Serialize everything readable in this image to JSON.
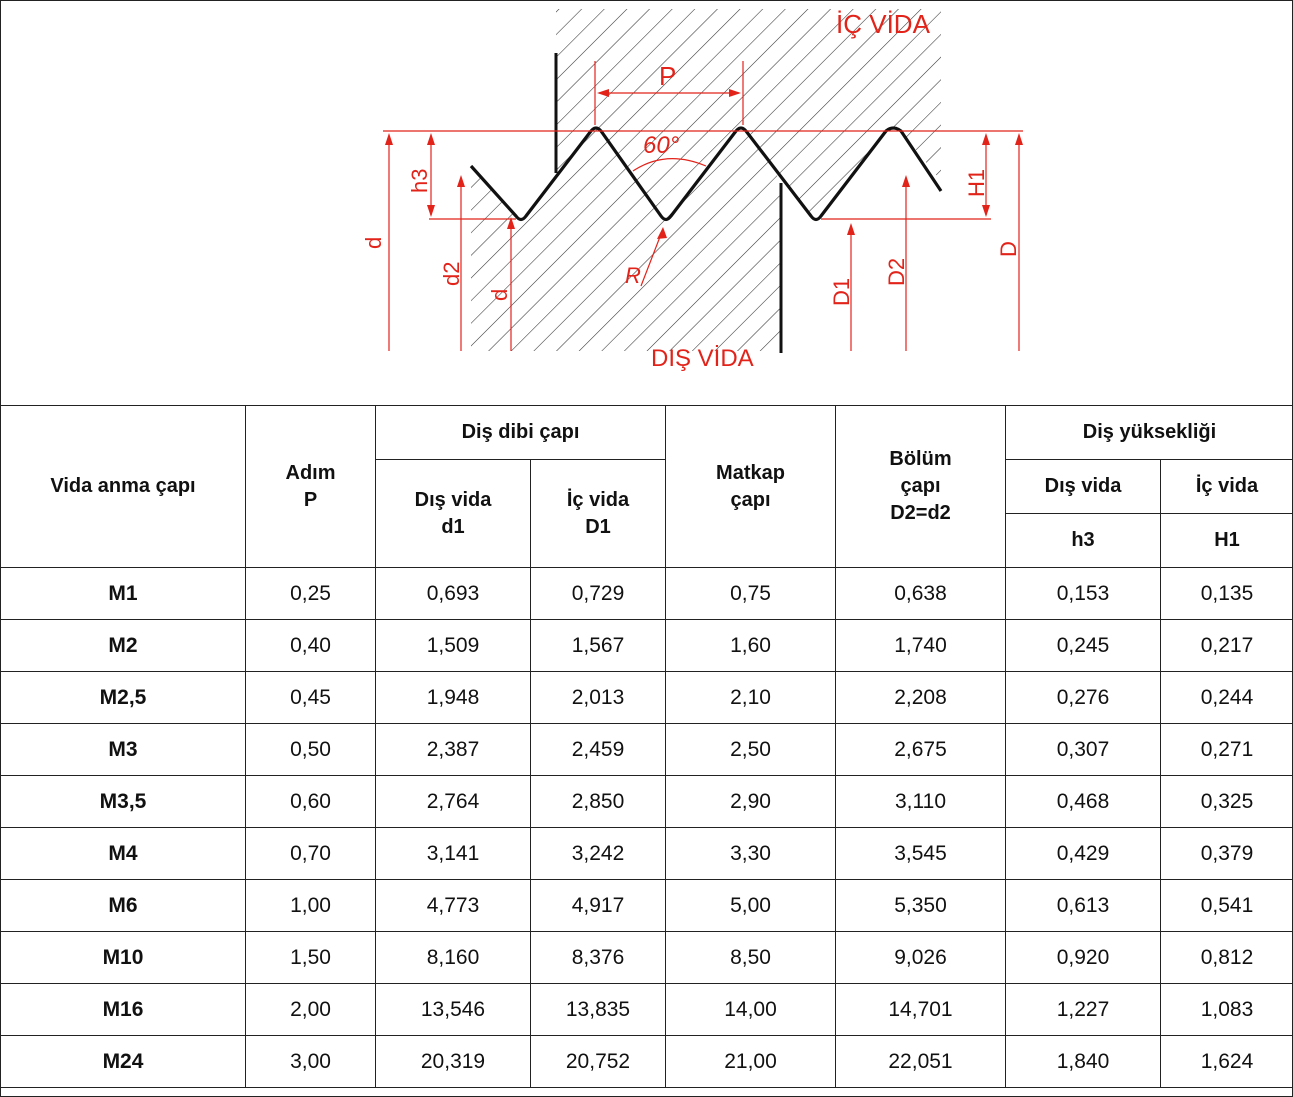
{
  "diagram": {
    "labels": {
      "ic_vida": "İÇ VİDA",
      "dis_vida": "DIŞ VİDA",
      "p": "P",
      "angle": "60°",
      "d": "d",
      "d2": "d2",
      "d3": "d",
      "h3": "h3",
      "r": "R",
      "d1": "D1",
      "cap_d2": "D2",
      "h1": "H1",
      "cap_d": "D"
    },
    "colors": {
      "dimension": "#e2231a",
      "outline": "#111111",
      "hatch": "#333333"
    }
  },
  "table": {
    "headers": {
      "nominal": "Vida anma çapı",
      "pitch_1": "Adım",
      "pitch_2": "P",
      "root_group": "Diş dibi çapı",
      "root_ext_1": "Dış vida",
      "root_ext_2": "d1",
      "root_int_1": "İç vida",
      "root_int_2": "D1",
      "drill_1": "Matkap",
      "drill_2": "çapı",
      "pitchdia_1": "Bölüm",
      "pitchdia_2": "çapı",
      "pitchdia_3": "D2=d2",
      "height_group": "Diş yüksekliği",
      "height_ext": "Dış vida",
      "height_int": "İç vida",
      "height_ext_sym": "h3",
      "height_int_sym": "H1"
    },
    "rows": [
      [
        "M1",
        "0,25",
        "0,693",
        "0,729",
        "0,75",
        "0,638",
        "0,153",
        "0,135"
      ],
      [
        "M2",
        "0,40",
        "1,509",
        "1,567",
        "1,60",
        "1,740",
        "0,245",
        "0,217"
      ],
      [
        "M2,5",
        "0,45",
        "1,948",
        "2,013",
        "2,10",
        "2,208",
        "0,276",
        "0,244"
      ],
      [
        "M3",
        "0,50",
        "2,387",
        "2,459",
        "2,50",
        "2,675",
        "0,307",
        "0,271"
      ],
      [
        "M3,5",
        "0,60",
        "2,764",
        "2,850",
        "2,90",
        "3,110",
        "0,468",
        "0,325"
      ],
      [
        "M4",
        "0,70",
        "3,141",
        "3,242",
        "3,30",
        "3,545",
        "0,429",
        "0,379"
      ],
      [
        "M6",
        "1,00",
        "4,773",
        "4,917",
        "5,00",
        "5,350",
        "0,613",
        "0,541"
      ],
      [
        "M10",
        "1,50",
        "8,160",
        "8,376",
        "8,50",
        "9,026",
        "0,920",
        "0,812"
      ],
      [
        "M16",
        "2,00",
        "13,546",
        "13,835",
        "14,00",
        "14,701",
        "1,227",
        "1,083"
      ],
      [
        "M24",
        "3,00",
        "20,319",
        "20,752",
        "21,00",
        "22,051",
        "1,840",
        "1,624"
      ]
    ]
  }
}
